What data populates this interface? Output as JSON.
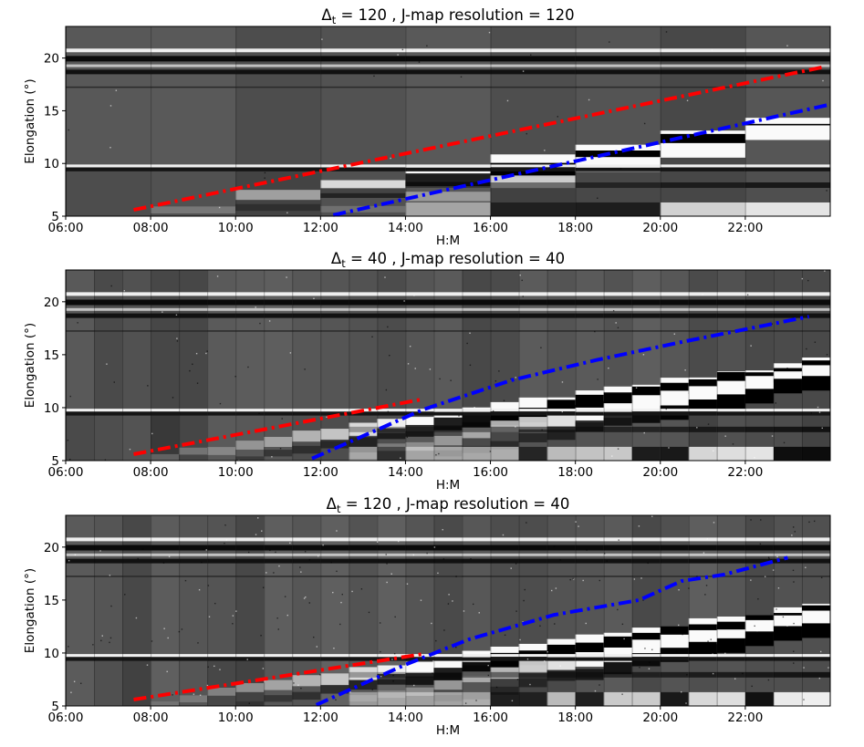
{
  "figure": {
    "panels": [
      {
        "title_prefix": "Δ",
        "title_sub": "t",
        "title_suffix": " = 120 , J-map resolution = 120",
        "xlabel": "H:M",
        "ylabel": "Elongation (°)"
      },
      {
        "title_prefix": "Δ",
        "title_sub": "t",
        "title_suffix": " = 40 , J-map resolution = 40",
        "xlabel": "H:M",
        "ylabel": "Elongation (°)"
      },
      {
        "title_prefix": "Δ",
        "title_sub": "t",
        "title_suffix": " = 120 , J-map resolution = 40",
        "xlabel": "H:M",
        "ylabel": "Elongation (°)"
      }
    ]
  },
  "chart_data": [
    {
      "type": "heatmap",
      "title": "Δt = 120 , J-map resolution = 120",
      "xlabel": "H:M",
      "ylabel": "Elongation (°)",
      "xlim": [
        6.0,
        24.0
      ],
      "ylim": [
        5,
        23
      ],
      "x_ticks": [
        "06:00",
        "08:00",
        "10:00",
        "12:00",
        "14:00",
        "16:00",
        "18:00",
        "20:00",
        "22:00"
      ],
      "y_ticks": [
        5,
        10,
        15,
        20
      ],
      "n_strips": 9,
      "colormap": "gray",
      "series": [
        {
          "color": "#ff0000",
          "x": [
            7.6,
            23.9
          ],
          "y": [
            5.6,
            19.2
          ]
        },
        {
          "color": "#0000ff",
          "x": [
            12.3,
            24.0
          ],
          "y": [
            5.1,
            15.6
          ]
        }
      ]
    },
    {
      "type": "heatmap",
      "title": "Δt = 40 , J-map resolution = 40",
      "xlabel": "H:M",
      "ylabel": "Elongation (°)",
      "xlim": [
        6.0,
        24.0
      ],
      "ylim": [
        5,
        23
      ],
      "x_ticks": [
        "06:00",
        "08:00",
        "10:00",
        "12:00",
        "14:00",
        "16:00",
        "18:00",
        "20:00",
        "22:00"
      ],
      "y_ticks": [
        5,
        10,
        15,
        20
      ],
      "n_strips": 27,
      "colormap": "gray",
      "series": [
        {
          "color": "#ff0000",
          "x": [
            7.6,
            14.4
          ],
          "y": [
            5.6,
            10.8
          ]
        },
        {
          "color": "#0000ff",
          "x": [
            11.8,
            14.4,
            16.5,
            18.5,
            20.5,
            22.5,
            23.5
          ],
          "y": [
            5.2,
            9.8,
            12.6,
            14.5,
            16.2,
            17.8,
            18.6
          ]
        }
      ]
    },
    {
      "type": "heatmap",
      "title": "Δt = 120 , J-map resolution = 40",
      "xlabel": "H:M",
      "ylabel": "Elongation (°)",
      "xlim": [
        6.0,
        24.0
      ],
      "ylim": [
        5,
        23
      ],
      "x_ticks": [
        "06:00",
        "08:00",
        "10:00",
        "12:00",
        "14:00",
        "16:00",
        "18:00",
        "20:00",
        "22:00"
      ],
      "y_ticks": [
        5,
        10,
        15,
        20
      ],
      "n_strips": 27,
      "colormap": "gray",
      "series": [
        {
          "color": "#ff0000",
          "x": [
            7.6,
            14.4
          ],
          "y": [
            5.6,
            9.9
          ]
        },
        {
          "color": "#0000ff",
          "x": [
            11.9,
            14.0,
            15.5,
            17.5,
            19.5,
            20.5,
            21.5,
            23.0
          ],
          "y": [
            5.1,
            8.9,
            11.3,
            13.6,
            15.0,
            16.8,
            17.4,
            19.0
          ]
        }
      ]
    }
  ]
}
